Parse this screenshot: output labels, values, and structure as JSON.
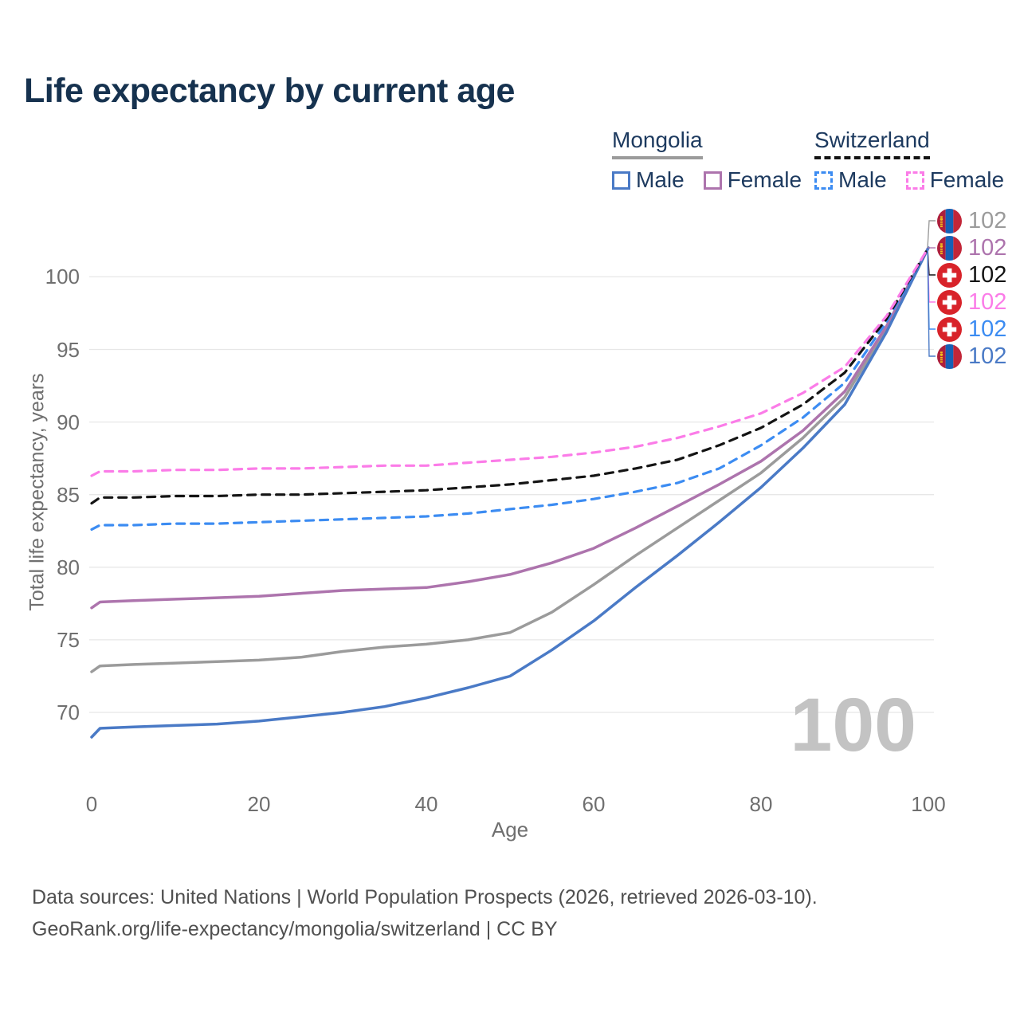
{
  "title": "Life expectancy by current age",
  "watermark": "100",
  "legend": {
    "groups": [
      {
        "label": "Mongolia",
        "underline_style": "solid",
        "underline_color": "#9b9b9b",
        "items": [
          {
            "label": "Male",
            "color": "#4a7ac6",
            "dashed": false
          },
          {
            "label": "Female",
            "color": "#ad74ad",
            "dashed": false
          }
        ]
      },
      {
        "label": "Switzerland",
        "underline_style": "dashed",
        "underline_color": "#141414",
        "items": [
          {
            "label": "Male",
            "color": "#3c8cf2",
            "dashed": true
          },
          {
            "label": "Female",
            "color": "#fb7ce8",
            "dashed": true
          }
        ]
      }
    ]
  },
  "right_labels": [
    {
      "value": "102",
      "country": "mongolia",
      "color": "#9b9b9b",
      "series": "Mongolia Total"
    },
    {
      "value": "102",
      "country": "mongolia",
      "color": "#ad74ad",
      "series": "Mongolia Female"
    },
    {
      "value": "102",
      "country": "switzerland",
      "color": "#141414",
      "series": "Switzerland Total"
    },
    {
      "value": "102",
      "country": "switzerland",
      "color": "#fb7ce8",
      "series": "Switzerland Female"
    },
    {
      "value": "102",
      "country": "switzerland",
      "color": "#3c8cf2",
      "series": "Switzerland Male"
    },
    {
      "value": "102",
      "country": "mongolia",
      "color": "#4a7ac6",
      "series": "Mongolia Male"
    }
  ],
  "chart_data": {
    "type": "line",
    "title": "Life expectancy by current age",
    "xlabel": "Age",
    "ylabel": "Total life expectancy, years",
    "xticks": [
      0,
      20,
      40,
      60,
      80,
      100
    ],
    "yticks": [
      70,
      75,
      80,
      85,
      90,
      95,
      100
    ],
    "xlim": [
      0,
      100
    ],
    "ylim": [
      68,
      103
    ],
    "grid": "horizontal",
    "legend_position": "top-right",
    "x": [
      0,
      1,
      5,
      10,
      15,
      20,
      25,
      30,
      35,
      40,
      45,
      50,
      55,
      60,
      65,
      70,
      75,
      80,
      85,
      90,
      95,
      100
    ],
    "series": [
      {
        "name": "Mongolia Total",
        "country": "mongolia",
        "style": "solid",
        "color": "#9b9b9b",
        "width": 3.5,
        "values": [
          72.8,
          73.2,
          73.3,
          73.4,
          73.5,
          73.6,
          73.8,
          74.2,
          74.5,
          74.7,
          75.0,
          75.5,
          76.9,
          78.8,
          80.8,
          82.7,
          84.6,
          86.5,
          88.9,
          91.7,
          96.4,
          102
        ]
      },
      {
        "name": "Mongolia Female",
        "country": "mongolia",
        "style": "solid",
        "color": "#ad74ad",
        "width": 3.5,
        "values": [
          77.2,
          77.6,
          77.7,
          77.8,
          77.9,
          78.0,
          78.2,
          78.4,
          78.5,
          78.6,
          79.0,
          79.5,
          80.3,
          81.3,
          82.7,
          84.2,
          85.7,
          87.3,
          89.4,
          92.1,
          96.6,
          102
        ]
      },
      {
        "name": "Mongolia Male",
        "country": "mongolia",
        "style": "solid",
        "color": "#4a7ac6",
        "width": 3.5,
        "values": [
          68.3,
          68.9,
          69.0,
          69.1,
          69.2,
          69.4,
          69.7,
          70.0,
          70.4,
          71.0,
          71.7,
          72.5,
          74.3,
          76.3,
          78.6,
          80.8,
          83.1,
          85.5,
          88.2,
          91.2,
          96.2,
          102
        ]
      },
      {
        "name": "Switzerland Male",
        "country": "switzerland",
        "style": "dashed",
        "color": "#3c8cf2",
        "width": 3.2,
        "values": [
          82.6,
          82.9,
          82.9,
          83.0,
          83.0,
          83.1,
          83.2,
          83.3,
          83.4,
          83.5,
          83.7,
          84.0,
          84.3,
          84.7,
          85.2,
          85.8,
          86.8,
          88.4,
          90.3,
          92.7,
          96.9,
          102
        ]
      },
      {
        "name": "Switzerland Total",
        "country": "switzerland",
        "style": "dashed",
        "color": "#141414",
        "width": 3.2,
        "values": [
          84.4,
          84.8,
          84.8,
          84.9,
          84.9,
          85.0,
          85.0,
          85.1,
          85.2,
          85.3,
          85.5,
          85.7,
          86.0,
          86.3,
          86.8,
          87.4,
          88.4,
          89.6,
          91.2,
          93.4,
          97.1,
          102
        ]
      },
      {
        "name": "Switzerland Female",
        "country": "switzerland",
        "style": "dashed",
        "color": "#fb7ce8",
        "width": 3.2,
        "values": [
          86.3,
          86.6,
          86.6,
          86.7,
          86.7,
          86.8,
          86.8,
          86.9,
          87.0,
          87.0,
          87.2,
          87.4,
          87.6,
          87.9,
          88.3,
          88.9,
          89.7,
          90.6,
          92.0,
          93.8,
          97.3,
          102
        ]
      }
    ]
  },
  "footer": {
    "line1": "Data sources: United Nations | World Population Prospects (2026, retrieved 2026-03-10).",
    "line2": "GeoRank.org/life-expectancy/mongolia/switzerland | CC BY"
  }
}
